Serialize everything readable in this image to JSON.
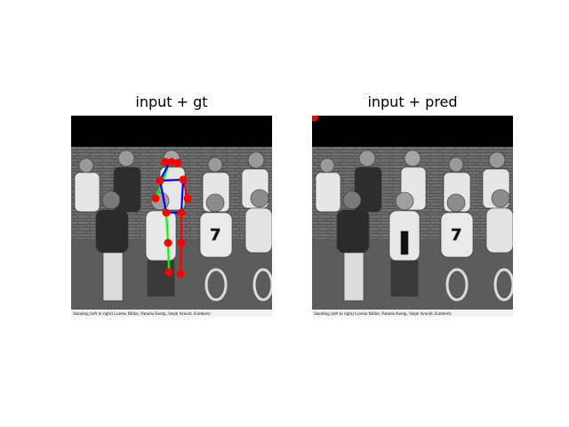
{
  "figure": {
    "panels": [
      {
        "title": "input + gt"
      },
      {
        "title": "input + pred"
      }
    ],
    "caption": "Standing (left to right) Lorena Miller, Pamela Kemp, Steph Arnold, Kimberly",
    "colors": {
      "keypoint": "#ff0000",
      "limb_left": "#00ff00",
      "limb_right": "#ff0000",
      "limb_torso": "#0000ff",
      "pad": "#000000"
    }
  }
}
